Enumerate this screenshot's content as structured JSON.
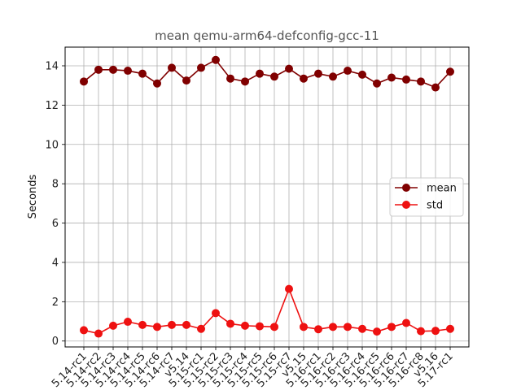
{
  "chart_data": {
    "type": "line",
    "title": "mean qemu-arm64-defconfig-gcc-11",
    "xlabel": "",
    "ylabel": "Seconds",
    "categories": [
      "5.14-rc1",
      "5.14-rc2",
      "5.14-rc3",
      "5.14-rc4",
      "5.14-rc5",
      "5.14-rc6",
      "5.14-rc7",
      "v5.14",
      "5.15-rc1",
      "5.15-rc2",
      "5.15-rc3",
      "5.15-rc4",
      "5.15-rc5",
      "5.15-rc6",
      "5.15-rc7",
      "v5.15",
      "5.16-rc1",
      "5.16-rc2",
      "5.16-rc3",
      "5.16-rc4",
      "5.16-rc5",
      "5.16-rc6",
      "5.16-rc7",
      "5.16-rc8",
      "v5.16",
      "5.17-rc1"
    ],
    "series": [
      {
        "name": "mean",
        "color": "#800000",
        "values": [
          13.2,
          13.8,
          13.8,
          13.75,
          13.6,
          13.1,
          13.9,
          13.25,
          13.9,
          14.3,
          13.35,
          13.2,
          13.6,
          13.45,
          13.85,
          13.35,
          13.6,
          13.45,
          13.75,
          13.55,
          13.1,
          13.4,
          13.3,
          13.2,
          12.9,
          13.7
        ]
      },
      {
        "name": "std",
        "color": "#ee1111",
        "values": [
          0.55,
          0.38,
          0.78,
          0.98,
          0.82,
          0.72,
          0.82,
          0.82,
          0.62,
          1.42,
          0.88,
          0.78,
          0.75,
          0.72,
          2.65,
          0.72,
          0.6,
          0.72,
          0.72,
          0.62,
          0.48,
          0.72,
          0.92,
          0.5,
          0.52,
          0.62
        ]
      }
    ],
    "yticks": [
      0,
      2,
      4,
      6,
      8,
      10,
      12,
      14
    ],
    "ylim": [
      -0.3,
      14.95
    ],
    "grid": true,
    "legend_position": "center-right"
  }
}
